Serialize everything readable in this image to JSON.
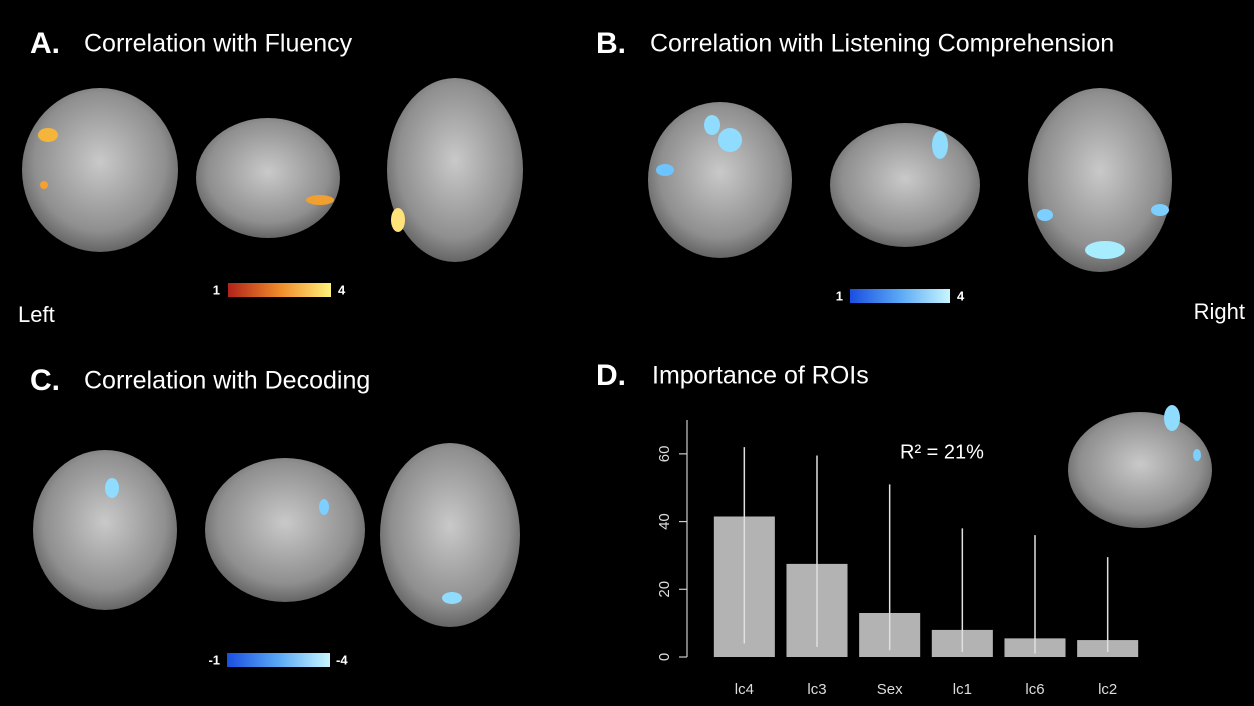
{
  "panels": [
    {
      "letter": "A.",
      "title": "Correlation with Fluency",
      "colorbar": {
        "min": 1,
        "max": 4
      }
    },
    {
      "letter": "B.",
      "title": "Correlation with Listening Comprehension",
      "colorbar": {
        "min": 1,
        "max": 4
      }
    },
    {
      "letter": "C.",
      "title": "Correlation with Decoding",
      "colorbar": {
        "min": -1,
        "max": -4
      }
    },
    {
      "letter": "D.",
      "title": "Importance of ROIs"
    }
  ],
  "side_labels": {
    "left": "Left",
    "right": "Right"
  },
  "chart_data": {
    "type": "bar",
    "annotation": "R² = 21%",
    "categories": [
      "lc4",
      "lc3",
      "Sex",
      "lc1",
      "lc6",
      "lc2"
    ],
    "values": [
      41.5,
      27.5,
      13,
      8,
      5.5,
      5
    ],
    "lower": [
      4,
      3,
      2,
      1.5,
      1,
      1.5
    ],
    "upper": [
      62,
      59.5,
      51,
      38,
      36,
      29.5
    ],
    "color": "#b3b3b3",
    "error_color": "#e0e0e0",
    "ylim": [
      0,
      70
    ],
    "yticks": [
      0,
      20,
      40,
      60
    ],
    "grid": false
  }
}
